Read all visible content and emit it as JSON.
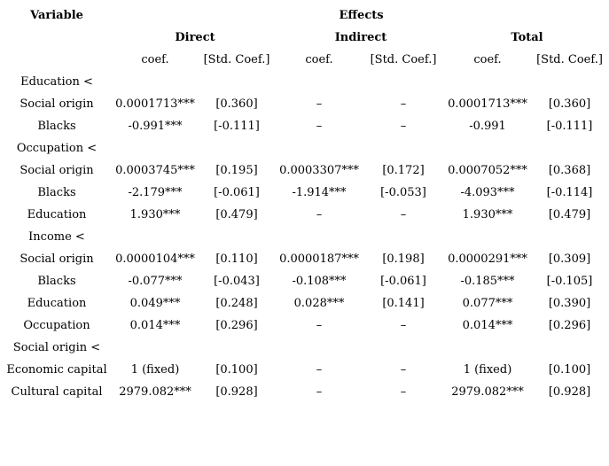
{
  "page": {
    "background_color": "#ffffff",
    "text_color": "#000000"
  },
  "table": {
    "variable_header": "Variable",
    "effects_header": "Effects",
    "groups": [
      {
        "label": "Direct"
      },
      {
        "label": "Indirect"
      },
      {
        "label": "Total"
      }
    ],
    "subheaders": {
      "coef": "coef.",
      "std": "[Std. Coef.]"
    },
    "columns": [
      "variable",
      "direct_coef",
      "direct_std_coef",
      "indirect_coef",
      "indirect_std_coef",
      "total_coef",
      "total_std_coef"
    ],
    "rows": [
      {
        "kind": "section",
        "cells": [
          "Education <",
          "",
          "",
          "",
          "",
          "",
          ""
        ]
      },
      {
        "kind": "data",
        "cells": [
          "Social origin",
          "0.0001713***",
          "[0.360]",
          "–",
          "–",
          "0.0001713***",
          "[0.360]"
        ]
      },
      {
        "kind": "data",
        "cells": [
          "Blacks",
          "-0.991***",
          "[-0.111]",
          "–",
          "–",
          "-0.991",
          "[-0.111]"
        ]
      },
      {
        "kind": "section",
        "cells": [
          "Occupation <",
          "",
          "",
          "",
          "",
          "",
          ""
        ]
      },
      {
        "kind": "data",
        "cells": [
          "Social origin",
          "0.0003745***",
          "[0.195]",
          "0.0003307***",
          "[0.172]",
          "0.0007052***",
          "[0.368]"
        ]
      },
      {
        "kind": "data",
        "cells": [
          "Blacks",
          "-2.179***",
          "[-0.061]",
          "-1.914***",
          "[-0.053]",
          "-4.093***",
          "[-0.114]"
        ]
      },
      {
        "kind": "data",
        "cells": [
          "Education",
          "1.930***",
          "[0.479]",
          "–",
          "–",
          "1.930***",
          "[0.479]"
        ]
      },
      {
        "kind": "section",
        "cells": [
          "Income <",
          "",
          "",
          "",
          "",
          "",
          ""
        ]
      },
      {
        "kind": "data",
        "cells": [
          "Social origin",
          "0.0000104***",
          "[0.110]",
          "0.0000187***",
          "[0.198]",
          "0.0000291***",
          "[0.309]"
        ]
      },
      {
        "kind": "data",
        "cells": [
          "Blacks",
          "-0.077***",
          "[-0.043]",
          "-0.108***",
          "[-0.061]",
          "-0.185***",
          "[-0.105]"
        ]
      },
      {
        "kind": "data",
        "cells": [
          "Education",
          "0.049***",
          "[0.248]",
          "0.028***",
          "[0.141]",
          "0.077***",
          "[0.390]"
        ]
      },
      {
        "kind": "data",
        "cells": [
          "Occupation",
          "0.014***",
          "[0.296]",
          "–",
          "–",
          "0.014***",
          "[0.296]"
        ]
      },
      {
        "kind": "section",
        "cells": [
          "Social origin <",
          "",
          "",
          "",
          "",
          "",
          ""
        ]
      },
      {
        "kind": "data",
        "cells": [
          "Economic capital",
          "1 (fixed)",
          "[0.100]",
          "–",
          "–",
          "1 (fixed)",
          "[0.100]"
        ]
      },
      {
        "kind": "data",
        "cells": [
          "Cultural capital",
          "2979.082***",
          "[0.928]",
          "–",
          "–",
          "2979.082***",
          "[0.928]"
        ]
      }
    ]
  }
}
